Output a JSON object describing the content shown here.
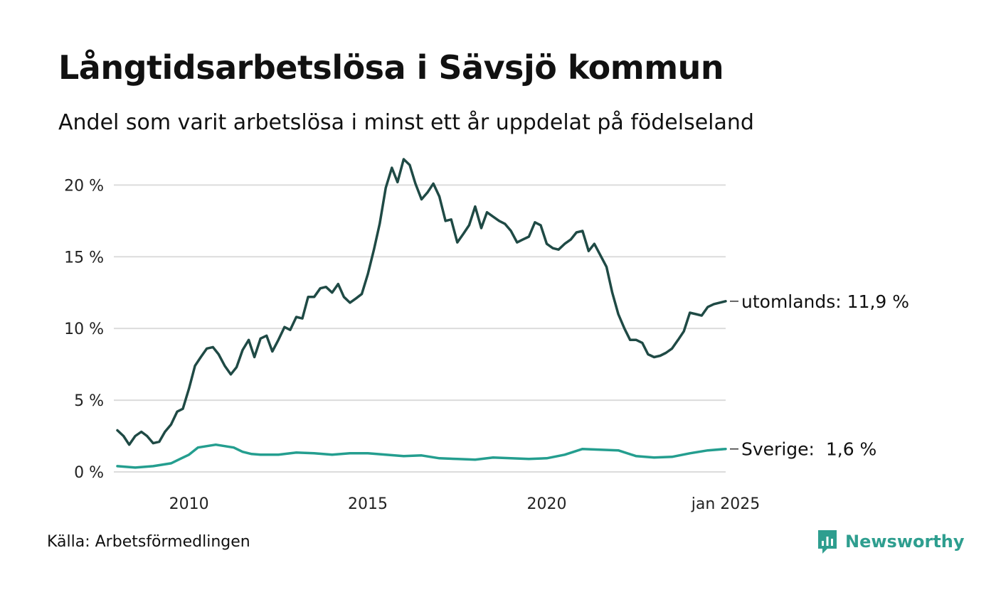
{
  "title": "Långtidsarbetslösa i Sävsjö kommun",
  "subtitle": "Andel som varit arbetslösa i minst ett år uppdelat på födelseland",
  "source": "Källa: Arbetsförmedlingen",
  "brand": {
    "name": "Newsworthy",
    "icon": "newsworthy-logo-icon",
    "color": "#2e9e8f"
  },
  "chart_data": {
    "type": "line",
    "x_ticks": [
      {
        "x": 2010,
        "label": "2010"
      },
      {
        "x": 2015,
        "label": "2015"
      },
      {
        "x": 2020,
        "label": "2020"
      },
      {
        "x": 2025,
        "label": "jan 2025"
      }
    ],
    "y_ticks": [
      {
        "y": 0,
        "label": "0 %"
      },
      {
        "y": 5,
        "label": "5 %"
      },
      {
        "y": 10,
        "label": "10 %"
      },
      {
        "y": 15,
        "label": "15 %"
      },
      {
        "y": 20,
        "label": "20 %"
      }
    ],
    "xlim": [
      2008.0,
      2025.0
    ],
    "ylim": [
      0,
      22
    ],
    "grid": "horizontal",
    "series": [
      {
        "name": "utomlands",
        "end_label": "utomlands: 11,9 %",
        "color": "#1f4a45",
        "points": [
          [
            2008.0,
            2.9
          ],
          [
            2008.17,
            2.5
          ],
          [
            2008.33,
            1.9
          ],
          [
            2008.5,
            2.5
          ],
          [
            2008.67,
            2.8
          ],
          [
            2008.83,
            2.5
          ],
          [
            2009.0,
            2.0
          ],
          [
            2009.17,
            2.1
          ],
          [
            2009.33,
            2.8
          ],
          [
            2009.5,
            3.3
          ],
          [
            2009.67,
            4.2
          ],
          [
            2009.83,
            4.4
          ],
          [
            2010.0,
            5.8
          ],
          [
            2010.17,
            7.4
          ],
          [
            2010.33,
            8.0
          ],
          [
            2010.5,
            8.6
          ],
          [
            2010.67,
            8.7
          ],
          [
            2010.83,
            8.2
          ],
          [
            2011.0,
            7.4
          ],
          [
            2011.17,
            6.8
          ],
          [
            2011.33,
            7.3
          ],
          [
            2011.5,
            8.5
          ],
          [
            2011.67,
            9.2
          ],
          [
            2011.83,
            8.0
          ],
          [
            2012.0,
            9.3
          ],
          [
            2012.17,
            9.5
          ],
          [
            2012.33,
            8.4
          ],
          [
            2012.5,
            9.2
          ],
          [
            2012.67,
            10.1
          ],
          [
            2012.83,
            9.9
          ],
          [
            2013.0,
            10.8
          ],
          [
            2013.17,
            10.7
          ],
          [
            2013.33,
            12.2
          ],
          [
            2013.5,
            12.2
          ],
          [
            2013.67,
            12.8
          ],
          [
            2013.83,
            12.9
          ],
          [
            2014.0,
            12.5
          ],
          [
            2014.17,
            13.1
          ],
          [
            2014.33,
            12.2
          ],
          [
            2014.5,
            11.8
          ],
          [
            2014.67,
            12.1
          ],
          [
            2014.83,
            12.4
          ],
          [
            2015.0,
            13.8
          ],
          [
            2015.17,
            15.5
          ],
          [
            2015.33,
            17.3
          ],
          [
            2015.5,
            19.8
          ],
          [
            2015.67,
            21.2
          ],
          [
            2015.83,
            20.2
          ],
          [
            2016.0,
            21.8
          ],
          [
            2016.17,
            21.4
          ],
          [
            2016.33,
            20.1
          ],
          [
            2016.5,
            19.0
          ],
          [
            2016.67,
            19.5
          ],
          [
            2016.83,
            20.1
          ],
          [
            2017.0,
            19.2
          ],
          [
            2017.17,
            17.5
          ],
          [
            2017.33,
            17.6
          ],
          [
            2017.5,
            16.0
          ],
          [
            2017.67,
            16.6
          ],
          [
            2017.83,
            17.2
          ],
          [
            2018.0,
            18.5
          ],
          [
            2018.17,
            17.0
          ],
          [
            2018.33,
            18.1
          ],
          [
            2018.5,
            17.8
          ],
          [
            2018.67,
            17.5
          ],
          [
            2018.83,
            17.3
          ],
          [
            2019.0,
            16.8
          ],
          [
            2019.17,
            16.0
          ],
          [
            2019.33,
            16.2
          ],
          [
            2019.5,
            16.4
          ],
          [
            2019.67,
            17.4
          ],
          [
            2019.83,
            17.2
          ],
          [
            2020.0,
            15.9
          ],
          [
            2020.17,
            15.6
          ],
          [
            2020.33,
            15.5
          ],
          [
            2020.5,
            15.9
          ],
          [
            2020.67,
            16.2
          ],
          [
            2020.83,
            16.7
          ],
          [
            2021.0,
            16.8
          ],
          [
            2021.17,
            15.4
          ],
          [
            2021.33,
            15.9
          ],
          [
            2021.5,
            15.1
          ],
          [
            2021.67,
            14.3
          ],
          [
            2021.83,
            12.5
          ],
          [
            2022.0,
            11.0
          ],
          [
            2022.17,
            10.0
          ],
          [
            2022.33,
            9.2
          ],
          [
            2022.5,
            9.2
          ],
          [
            2022.67,
            9.0
          ],
          [
            2022.83,
            8.2
          ],
          [
            2023.0,
            8.0
          ],
          [
            2023.17,
            8.1
          ],
          [
            2023.33,
            8.3
          ],
          [
            2023.5,
            8.6
          ],
          [
            2023.67,
            9.2
          ],
          [
            2023.83,
            9.8
          ],
          [
            2024.0,
            11.1
          ],
          [
            2024.17,
            11.0
          ],
          [
            2024.33,
            10.9
          ],
          [
            2024.5,
            11.5
          ],
          [
            2024.67,
            11.7
          ],
          [
            2025.0,
            11.9
          ]
        ]
      },
      {
        "name": "Sverige",
        "end_label": "Sverige:  1,6 %",
        "color": "#249e8f",
        "points": [
          [
            2008.0,
            0.4
          ],
          [
            2008.5,
            0.3
          ],
          [
            2009.0,
            0.4
          ],
          [
            2009.5,
            0.6
          ],
          [
            2009.75,
            0.9
          ],
          [
            2010.0,
            1.2
          ],
          [
            2010.25,
            1.7
          ],
          [
            2010.5,
            1.8
          ],
          [
            2010.75,
            1.9
          ],
          [
            2011.0,
            1.8
          ],
          [
            2011.25,
            1.7
          ],
          [
            2011.5,
            1.4
          ],
          [
            2011.75,
            1.25
          ],
          [
            2012.0,
            1.2
          ],
          [
            2012.5,
            1.2
          ],
          [
            2013.0,
            1.35
          ],
          [
            2013.5,
            1.3
          ],
          [
            2014.0,
            1.2
          ],
          [
            2014.5,
            1.3
          ],
          [
            2015.0,
            1.3
          ],
          [
            2015.5,
            1.2
          ],
          [
            2016.0,
            1.1
          ],
          [
            2016.5,
            1.15
          ],
          [
            2017.0,
            0.95
          ],
          [
            2017.5,
            0.9
          ],
          [
            2018.0,
            0.85
          ],
          [
            2018.5,
            1.0
          ],
          [
            2019.0,
            0.95
          ],
          [
            2019.5,
            0.9
          ],
          [
            2020.0,
            0.95
          ],
          [
            2020.5,
            1.2
          ],
          [
            2021.0,
            1.6
          ],
          [
            2021.5,
            1.55
          ],
          [
            2022.0,
            1.5
          ],
          [
            2022.5,
            1.1
          ],
          [
            2023.0,
            1.0
          ],
          [
            2023.5,
            1.05
          ],
          [
            2024.0,
            1.3
          ],
          [
            2024.5,
            1.5
          ],
          [
            2025.0,
            1.6
          ]
        ]
      }
    ]
  }
}
